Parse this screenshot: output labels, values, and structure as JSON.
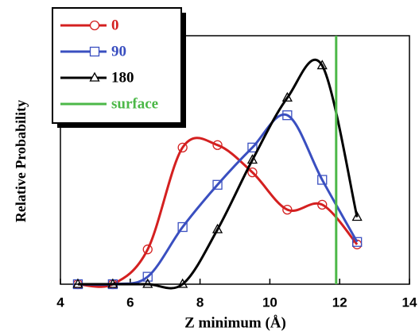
{
  "chart_data": {
    "type": "line",
    "x_label": "Z minimum (Å)",
    "y_label": "Relative Probability",
    "x": [
      4.5,
      5.5,
      6.5,
      7.5,
      8.5,
      9.5,
      10.5,
      11.5,
      12.5
    ],
    "series": [
      {
        "name": "0",
        "color": "#d42020",
        "marker": "circle",
        "values": [
          0,
          0,
          0.14,
          0.55,
          0.56,
          0.45,
          0.3,
          0.32,
          0.16
        ]
      },
      {
        "name": "90",
        "color": "#3a4fc0",
        "marker": "square",
        "values": [
          0,
          0,
          0.03,
          0.23,
          0.4,
          0.55,
          0.68,
          0.42,
          0.17
        ]
      },
      {
        "name": "180",
        "color": "#000000",
        "marker": "triangle",
        "values": [
          0,
          0,
          0,
          0,
          0.22,
          0.5,
          0.75,
          0.88,
          0.27
        ]
      },
      {
        "name": "surface",
        "color": "#4cb848",
        "x_position": 11.9
      }
    ],
    "xlim": [
      4,
      14
    ],
    "xticks": [
      4,
      6,
      8,
      10,
      12,
      14
    ],
    "ylim": [
      0,
      1
    ]
  }
}
